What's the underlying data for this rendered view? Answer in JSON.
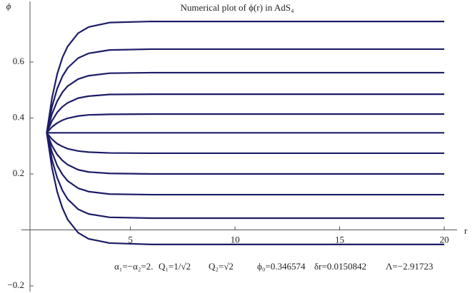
{
  "chart_data": {
    "type": "line",
    "title": "Numerical plot of ϕ(r) in AdS₄",
    "x_label": "r",
    "y_label": "ϕ",
    "x": [
      1,
      1.25,
      1.5,
      1.75,
      2,
      2.5,
      3,
      4,
      6,
      10,
      15,
      20
    ],
    "color": "#1c1c68",
    "series": [
      {
        "values": [
          0.347,
          0.471,
          0.557,
          0.616,
          0.656,
          0.703,
          0.725,
          0.741,
          0.745,
          0.745,
          0.745,
          0.745
        ]
      },
      {
        "values": [
          0.347,
          0.44,
          0.505,
          0.549,
          0.579,
          0.614,
          0.631,
          0.643,
          0.646,
          0.646,
          0.646,
          0.646
        ]
      },
      {
        "values": [
          0.347,
          0.414,
          0.46,
          0.492,
          0.514,
          0.539,
          0.551,
          0.56,
          0.562,
          0.562,
          0.562,
          0.562
        ]
      },
      {
        "values": [
          0.347,
          0.39,
          0.42,
          0.44,
          0.454,
          0.471,
          0.478,
          0.484,
          0.485,
          0.485,
          0.485,
          0.485
        ]
      },
      {
        "values": [
          0.347,
          0.368,
          0.382,
          0.392,
          0.399,
          0.407,
          0.411,
          0.413,
          0.414,
          0.414,
          0.414,
          0.414
        ]
      },
      {
        "values": [
          0.347,
          0.347,
          0.347,
          0.347,
          0.347,
          0.347,
          0.347,
          0.347,
          0.347,
          0.347,
          0.347,
          0.347
        ]
      },
      {
        "values": [
          0.347,
          0.324,
          0.308,
          0.298,
          0.29,
          0.282,
          0.278,
          0.275,
          0.274,
          0.274,
          0.274,
          0.274
        ]
      },
      {
        "values": [
          0.347,
          0.301,
          0.269,
          0.248,
          0.233,
          0.215,
          0.207,
          0.202,
          0.2,
          0.2,
          0.2,
          0.2
        ]
      },
      {
        "values": [
          0.347,
          0.278,
          0.23,
          0.198,
          0.175,
          0.149,
          0.137,
          0.128,
          0.126,
          0.126,
          0.126,
          0.126
        ]
      },
      {
        "values": [
          0.347,
          0.251,
          0.186,
          0.141,
          0.11,
          0.074,
          0.057,
          0.045,
          0.042,
          0.042,
          0.042,
          0.042
        ]
      },
      {
        "values": [
          0.347,
          0.222,
          0.136,
          0.078,
          0.037,
          -0.01,
          -0.032,
          -0.047,
          -0.052,
          -0.052,
          -0.052,
          -0.052
        ]
      }
    ],
    "xlim": [
      0.2,
      20
    ],
    "ylim": [
      -0.2,
      0.8
    ],
    "xticks": [
      5,
      10,
      15,
      20
    ],
    "yticks": [
      {
        "value": -0.2,
        "label": "−0.2"
      },
      0.2,
      0.4,
      0.6
    ],
    "grid": false,
    "annotations": [
      "α₁=−α₂=2.",
      "Q₁=1/√2",
      "Q₂=√2",
      "ϕ₀=0.346574",
      "δr=0.0150842",
      "Λ=−2.91723"
    ]
  }
}
